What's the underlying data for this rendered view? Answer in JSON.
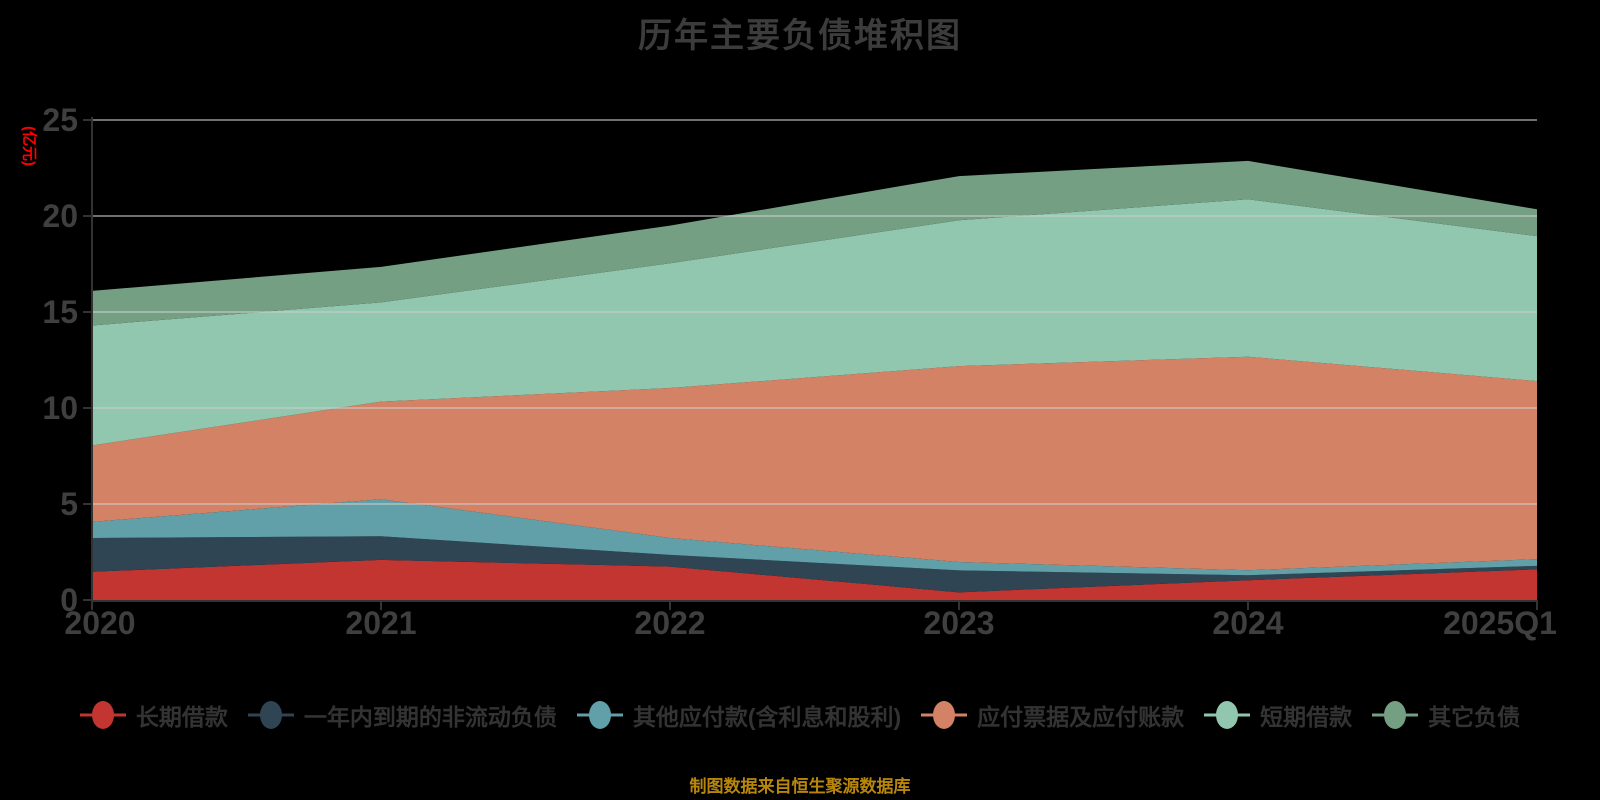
{
  "title": "历年主要负债堆积图",
  "y_axis_name": "(亿元)",
  "footer": {
    "text": "制图数据来自恒生聚源数据库",
    "color": "#b8860b"
  },
  "colors": {
    "background": "#000000",
    "title_text": "#3c3c3c",
    "axis_tick_text": "#3f3f3f",
    "axis_line": "#333333",
    "gridline": "#cccccc",
    "legend_text": "#333333",
    "y_axis_name_text": "#ff0000"
  },
  "chart_data": {
    "type": "area",
    "stacked": true,
    "title": "历年主要负债堆积图",
    "xlabel": "",
    "ylabel": "(亿元)",
    "ylim": [
      0,
      25
    ],
    "y_ticks": [
      "0",
      "5",
      "10",
      "15",
      "20",
      "25"
    ],
    "y_tick_values": [
      0,
      5,
      10,
      15,
      20,
      25
    ],
    "grid": true,
    "legend_position": "bottom",
    "categories": [
      "2020",
      "2021",
      "2022",
      "2023",
      "2024",
      "2025Q1"
    ],
    "series": [
      {
        "name": "长期借款",
        "color": "#c23531",
        "values": [
          1.47,
          2.09,
          1.74,
          0.4,
          1.03,
          1.6
        ]
      },
      {
        "name": "一年内到期的非流动负债",
        "color": "#2f4554",
        "values": [
          1.76,
          1.23,
          0.61,
          1.14,
          0.26,
          0.18
        ]
      },
      {
        "name": "其他应付款(含利息和股利)",
        "color": "#61a0a8",
        "values": [
          0.84,
          1.93,
          0.88,
          0.44,
          0.26,
          0.35
        ]
      },
      {
        "name": "应付票据及应付账款",
        "color": "#d48265",
        "values": [
          3.98,
          5.08,
          7.81,
          10.2,
          11.12,
          9.27
        ]
      },
      {
        "name": "短期借款",
        "color": "#91c7ae",
        "values": [
          6.25,
          5.17,
          6.5,
          7.6,
          8.2,
          7.55
        ]
      },
      {
        "name": "其它负债",
        "color": "#749f83",
        "values": [
          1.8,
          1.85,
          1.96,
          2.3,
          2.0,
          1.4
        ]
      }
    ]
  }
}
